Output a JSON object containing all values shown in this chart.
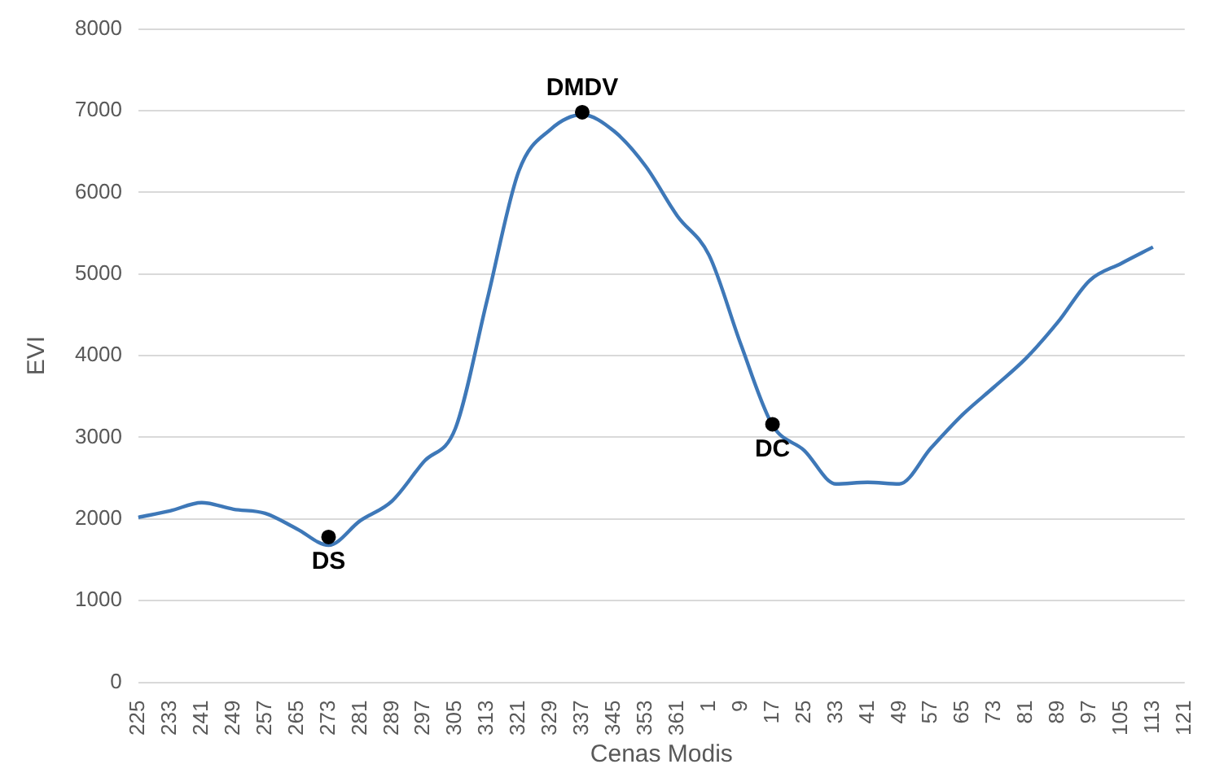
{
  "chart_data": {
    "type": "line",
    "xlabel": "Cenas Modis",
    "ylabel": "EVI",
    "categories": [
      "225",
      "233",
      "241",
      "249",
      "257",
      "265",
      "273",
      "281",
      "289",
      "297",
      "305",
      "313",
      "321",
      "329",
      "337",
      "345",
      "353",
      "361",
      "1",
      "9",
      "17",
      "25",
      "33",
      "41",
      "49",
      "57",
      "65",
      "73",
      "81",
      "89",
      "97",
      "105",
      "113",
      "121"
    ],
    "series": [
      {
        "color": "#3e78b8",
        "marker": "none",
        "values": [
          2020,
          2100,
          2200,
          2120,
          2070,
          1880,
          1680,
          1980,
          2220,
          2700,
          3110,
          4680,
          6260,
          6770,
          6950,
          6750,
          6320,
          5710,
          5230,
          4140,
          3150,
          2840,
          2430,
          2450,
          2430,
          2870,
          3280,
          3620,
          3970,
          4410,
          4920,
          5130,
          5330,
          null
        ]
      },
      {
        "type": "scatter",
        "color": "#000000",
        "marker": "circle",
        "x": [
          "273",
          "337",
          "17"
        ],
        "values": [
          1780,
          6980,
          3160
        ]
      }
    ],
    "annotations": [
      {
        "text": "DS",
        "x": "273",
        "y": 1780
      },
      {
        "text": "DMDV",
        "x": "337",
        "y": 6980
      },
      {
        "text": "DC",
        "x": "17",
        "y": 3160
      }
    ],
    "ylim": [
      0,
      8000
    ],
    "yticks": [
      0,
      1000,
      2000,
      3000,
      4000,
      5000,
      6000,
      7000,
      8000
    ],
    "grid": "y",
    "legend": false,
    "line_style": "solid"
  }
}
